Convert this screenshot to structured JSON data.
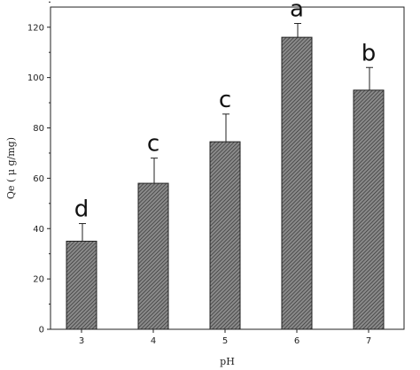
{
  "chart_data": {
    "type": "bar",
    "categories": [
      "3",
      "4",
      "5",
      "6",
      "7"
    ],
    "values": [
      35,
      58,
      74.5,
      116,
      95
    ],
    "errors": [
      7,
      10,
      11,
      5.5,
      9
    ],
    "significance": [
      "d",
      "c",
      "c",
      "a",
      "b"
    ],
    "xlabel": "pH",
    "ylabel": "Qe ( μ g/mg)",
    "ylim": [
      0,
      128
    ],
    "yticks": [
      0,
      20,
      40,
      60,
      80,
      100,
      120
    ],
    "colors": {
      "bar_fill": "#7a7a7a",
      "bar_hatch": "#3a3a3a",
      "axis": "#222222"
    }
  }
}
